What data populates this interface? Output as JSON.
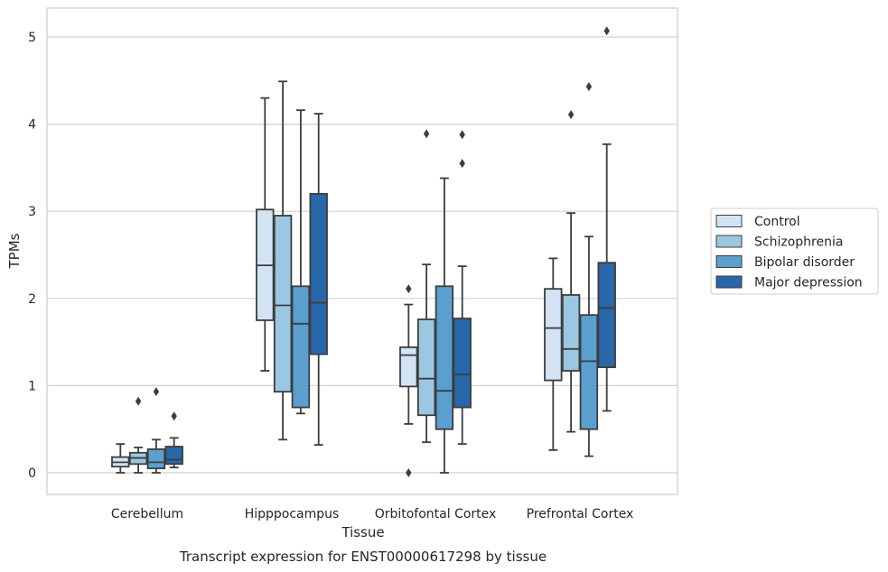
{
  "chart_data": {
    "type": "boxplot",
    "title": "",
    "caption": "Transcript expression for ENST00000617298 by tissue",
    "xlabel": "Tissue",
    "ylabel": "TPMs",
    "ylim": [
      -0.25,
      5.33
    ],
    "yticks": [
      0,
      1,
      2,
      3,
      4,
      5
    ],
    "grid": "horizontal",
    "legend_position": "right",
    "categories": [
      "Cerebellum",
      "Hipppocampus",
      "Orbitofontal Cortex",
      "Prefrontal Cortex"
    ],
    "series": [
      {
        "name": "Control",
        "color": "#d2e3f3",
        "boxes": [
          {
            "whislo": 0.0,
            "q1": 0.07,
            "med": 0.12,
            "q3": 0.18,
            "whishi": 0.33,
            "fliers": []
          },
          {
            "whislo": 1.17,
            "q1": 1.75,
            "med": 2.38,
            "q3": 3.02,
            "whishi": 4.3,
            "fliers": []
          },
          {
            "whislo": 0.56,
            "q1": 0.99,
            "med": 1.35,
            "q3": 1.44,
            "whishi": 1.93,
            "fliers": [
              2.11,
              0.0
            ]
          },
          {
            "whislo": 0.26,
            "q1": 1.06,
            "med": 1.66,
            "q3": 2.11,
            "whishi": 2.46,
            "fliers": []
          }
        ]
      },
      {
        "name": "Schizophrenia",
        "color": "#9ac8e0",
        "boxes": [
          {
            "whislo": 0.0,
            "q1": 0.1,
            "med": 0.17,
            "q3": 0.23,
            "whishi": 0.29,
            "fliers": [
              0.82
            ]
          },
          {
            "whislo": 0.38,
            "q1": 0.93,
            "med": 1.92,
            "q3": 2.95,
            "whishi": 4.49,
            "fliers": []
          },
          {
            "whislo": 0.35,
            "q1": 0.66,
            "med": 1.08,
            "q3": 1.76,
            "whishi": 2.39,
            "fliers": [
              3.89
            ]
          },
          {
            "whislo": 0.47,
            "q1": 1.17,
            "med": 1.42,
            "q3": 2.04,
            "whishi": 2.98,
            "fliers": [
              4.11
            ]
          }
        ]
      },
      {
        "name": "Bipolar disorder",
        "color": "#5a9fce",
        "boxes": [
          {
            "whislo": 0.0,
            "q1": 0.05,
            "med": 0.12,
            "q3": 0.27,
            "whishi": 0.38,
            "fliers": [
              0.93
            ]
          },
          {
            "whislo": 0.68,
            "q1": 0.75,
            "med": 1.71,
            "q3": 2.14,
            "whishi": 4.16,
            "fliers": []
          },
          {
            "whislo": 0.0,
            "q1": 0.5,
            "med": 0.94,
            "q3": 2.14,
            "whishi": 3.38,
            "fliers": []
          },
          {
            "whislo": 0.19,
            "q1": 0.5,
            "med": 1.28,
            "q3": 1.81,
            "whishi": 2.71,
            "fliers": [
              4.43
            ]
          }
        ]
      },
      {
        "name": "Major depression",
        "color": "#2868a9",
        "boxes": [
          {
            "whislo": 0.06,
            "q1": 0.1,
            "med": 0.15,
            "q3": 0.3,
            "whishi": 0.4,
            "fliers": [
              0.65
            ]
          },
          {
            "whislo": 0.32,
            "q1": 1.36,
            "med": 1.95,
            "q3": 3.2,
            "whishi": 4.12,
            "fliers": []
          },
          {
            "whislo": 0.33,
            "q1": 0.75,
            "med": 1.13,
            "q3": 1.77,
            "whishi": 2.37,
            "fliers": [
              3.88,
              3.55
            ]
          },
          {
            "whislo": 0.71,
            "q1": 1.21,
            "med": 1.89,
            "q3": 2.41,
            "whishi": 3.77,
            "fliers": [
              5.07
            ]
          }
        ]
      }
    ]
  }
}
